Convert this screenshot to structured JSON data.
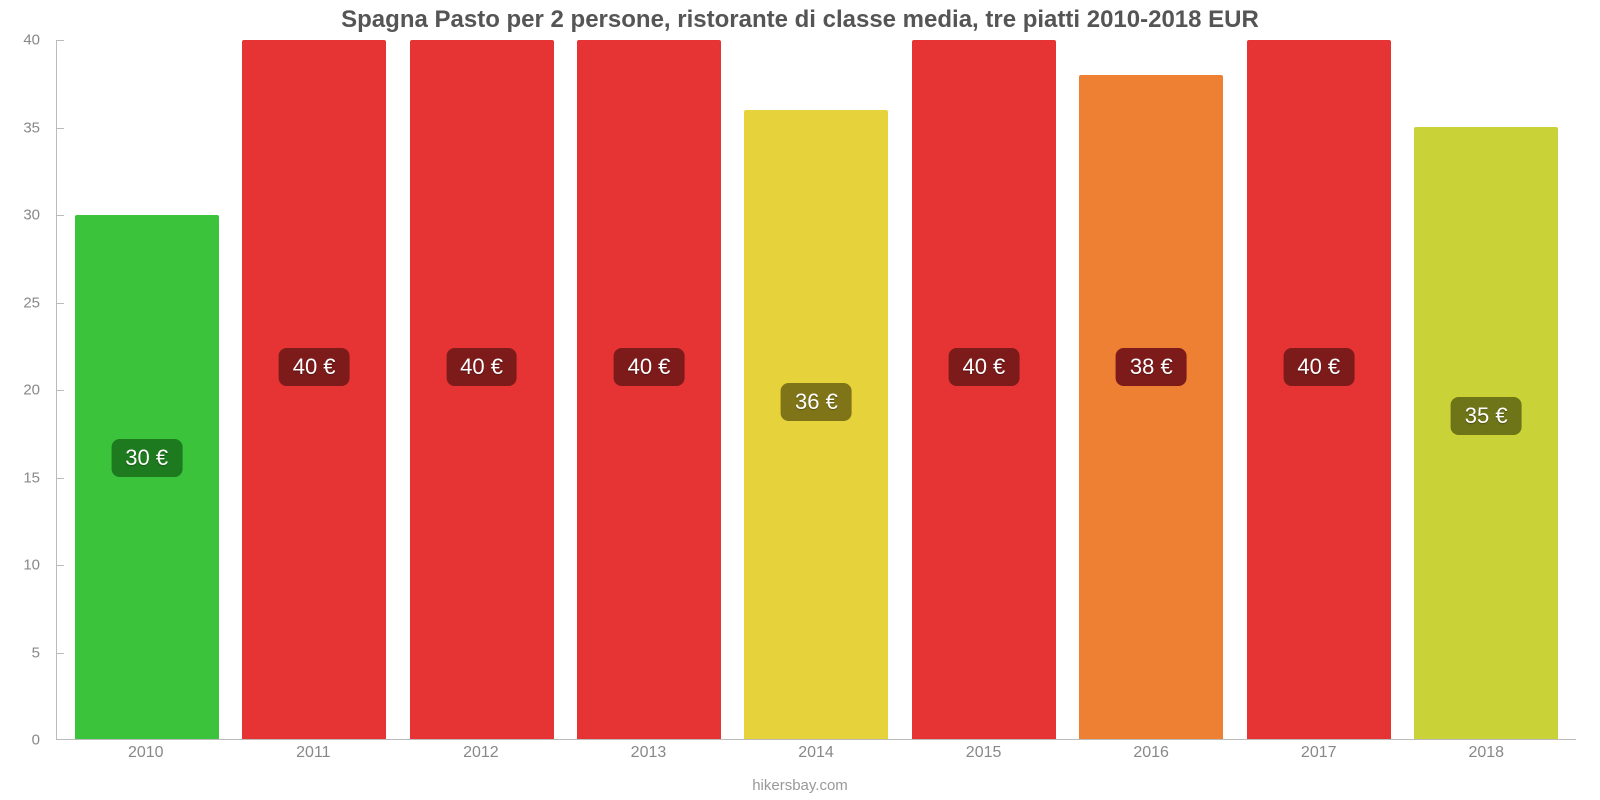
{
  "chart": {
    "type": "bar",
    "title": "Spagna Pasto per 2 persone, ristorante di classe media, tre piatti 2010-2018 EUR",
    "title_color": "#555555",
    "title_fontsize": 24,
    "background_color": "#ffffff",
    "axis_color": "#bbbbbb",
    "tick_label_color": "#888888",
    "tick_fontsize": 15,
    "xlabel_fontsize": 16,
    "ymin": 0,
    "ymax": 40,
    "yticks": [
      0,
      5,
      10,
      15,
      20,
      25,
      30,
      35,
      40
    ],
    "bar_width_pct": 86,
    "credit": "hikersbay.com",
    "credit_color": "#999999",
    "bars": [
      {
        "category": "2010",
        "value": 30,
        "value_label": "30 €",
        "bar_color": "#3bc43b",
        "label_bg": "#1e7a1e",
        "label_top_pct": 57
      },
      {
        "category": "2011",
        "value": 40,
        "value_label": "40 €",
        "bar_color": "#e63434",
        "label_bg": "#7d1b1b",
        "label_top_pct": 44
      },
      {
        "category": "2012",
        "value": 40,
        "value_label": "40 €",
        "bar_color": "#e63434",
        "label_bg": "#7d1b1b",
        "label_top_pct": 44
      },
      {
        "category": "2013",
        "value": 40,
        "value_label": "40 €",
        "bar_color": "#e63434",
        "label_bg": "#7d1b1b",
        "label_top_pct": 44
      },
      {
        "category": "2014",
        "value": 36,
        "value_label": "36 €",
        "bar_color": "#e6d23a",
        "label_bg": "#807418",
        "label_top_pct": 49
      },
      {
        "category": "2015",
        "value": 40,
        "value_label": "40 €",
        "bar_color": "#e63434",
        "label_bg": "#7d1b1b",
        "label_top_pct": 44
      },
      {
        "category": "2016",
        "value": 38,
        "value_label": "38 €",
        "bar_color": "#ed8033",
        "label_bg": "#7d1b1b",
        "label_top_pct": 44
      },
      {
        "category": "2017",
        "value": 40,
        "value_label": "40 €",
        "bar_color": "#e63434",
        "label_bg": "#7d1b1b",
        "label_top_pct": 44
      },
      {
        "category": "2018",
        "value": 35,
        "value_label": "35 €",
        "bar_color": "#c9d237",
        "label_bg": "#6e7418",
        "label_top_pct": 51
      }
    ]
  }
}
